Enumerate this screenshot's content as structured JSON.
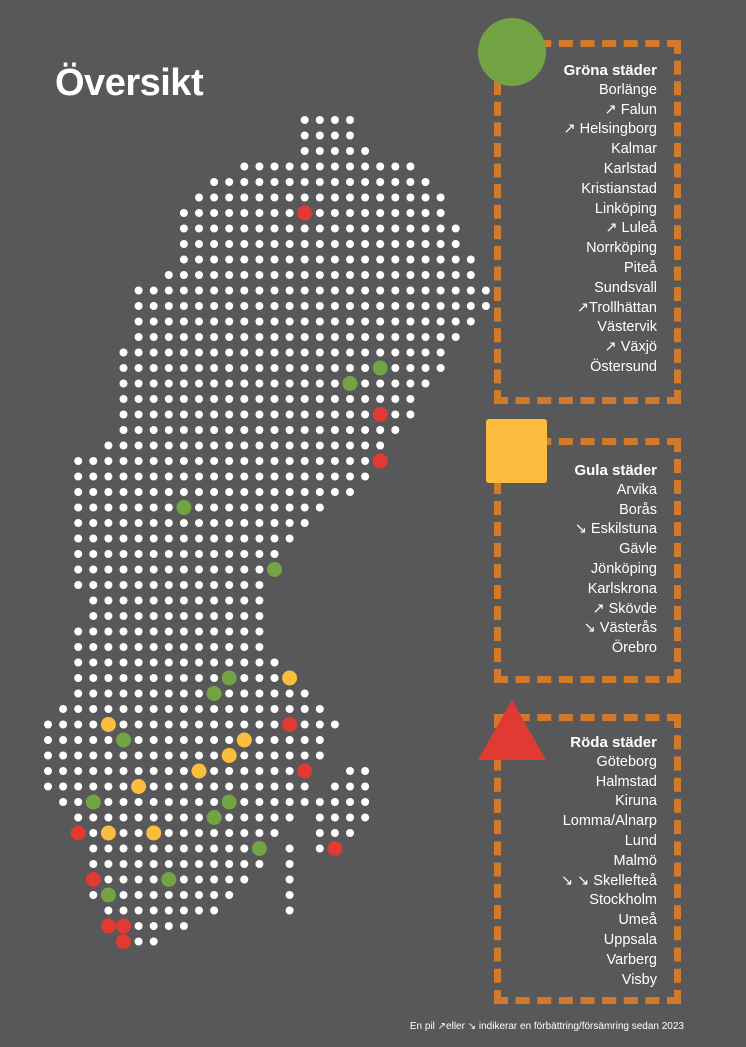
{
  "title": "Översikt",
  "colors": {
    "background": "#58585a",
    "green": "#72a443",
    "yellow": "#fbbd3e",
    "red": "#e03a32",
    "frame": "#d27a2b",
    "dot": "#ffffff"
  },
  "groups": {
    "green": {
      "header": "Gröna städer",
      "cities": [
        "Borlänge",
        "↗ Falun",
        "↗ Helsingborg",
        "Kalmar",
        "Karlstad",
        "Kristianstad",
        "Linköping",
        "↗ Luleå",
        "Norrköping",
        "Piteå",
        "Sundsvall",
        "↗Trollhättan",
        "Västervik",
        "↗ Växjö",
        "Östersund"
      ]
    },
    "yellow": {
      "header": "Gula städer",
      "cities": [
        "Arvika",
        "Borås",
        "↘ Eskilstuna",
        "Gävle",
        "Jönköping",
        "Karlskrona",
        "↗ Skövde",
        "↘ Västerås",
        "Örebro"
      ]
    },
    "red": {
      "header": "Röda städer",
      "cities": [
        "Göteborg",
        "Halmstad",
        "Kiruna",
        "Lomma/Alnarp",
        "Lund",
        "Malmö",
        "↘ ↘ Skellefteå",
        "Stockholm",
        "Umeå",
        "Uppsala",
        "Varberg",
        "Visby"
      ]
    }
  },
  "footnote": "En pil ↗eller ↘ indikerar en förbättring/försämring sedan 2023"
}
